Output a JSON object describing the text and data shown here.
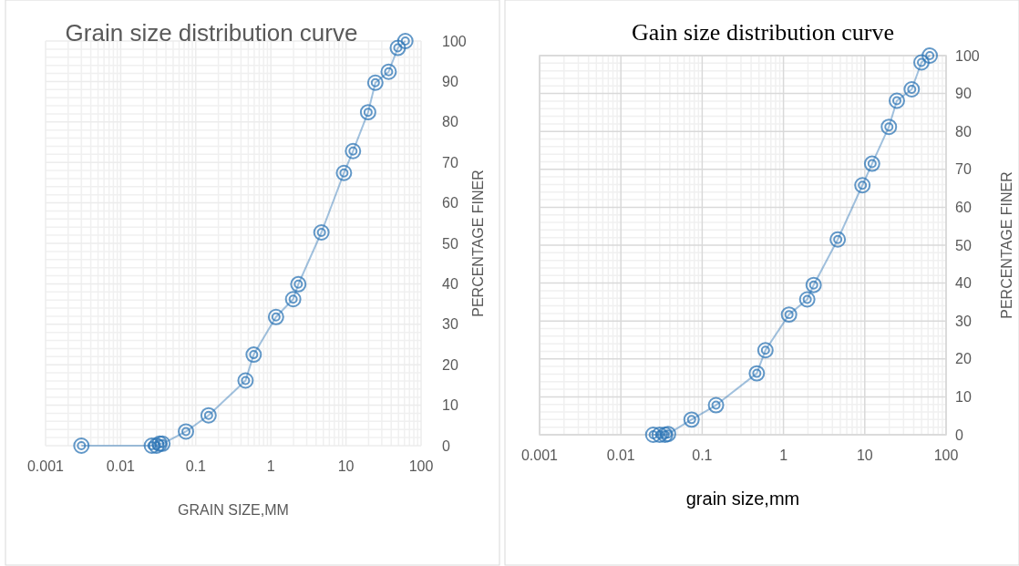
{
  "chart_data": [
    {
      "type": "line",
      "title": "Grain size distribution curve",
      "xlabel": "GRAIN SIZE,MM",
      "ylabel": "PERCENTAGE FINER",
      "log": "x",
      "grid": true,
      "marker": "circle",
      "xlim": [
        0.001,
        100
      ],
      "xticks": [
        0.001,
        0.01,
        0.1,
        1,
        10,
        100
      ],
      "ylim": [
        0,
        100
      ],
      "yticks": [
        0,
        10,
        20,
        30,
        40,
        50,
        60,
        70,
        80,
        90,
        100
      ],
      "series": [
        {
          "color": "#2e75b6",
          "x": [
            0.003,
            0.026,
            0.03,
            0.033,
            0.036,
            0.074,
            0.148,
            0.46,
            0.59,
            1.17,
            1.98,
            2.32,
            4.71,
            9.4,
            12.4,
            19.7,
            24.6,
            37,
            49,
            61.7
          ],
          "values": [
            0,
            0,
            0,
            0.5,
            0.5,
            3.5,
            7.5,
            16.1,
            22.5,
            31.8,
            36.2,
            39.9,
            52.7,
            67.4,
            72.8,
            82.4,
            89.7,
            92.4,
            98.3,
            100
          ]
        }
      ]
    },
    {
      "type": "line",
      "title": "Gain size distribution curve",
      "xlabel": "grain size,mm",
      "ylabel": "PERCENTAGE FINER",
      "log": "x",
      "grid": true,
      "marker": "circle",
      "xlim": [
        0.001,
        100
      ],
      "xticks": [
        0.001,
        0.01,
        0.1,
        1,
        10,
        100
      ],
      "ylim": [
        0,
        100
      ],
      "yticks": [
        0,
        10,
        20,
        30,
        40,
        50,
        60,
        70,
        80,
        90,
        100
      ],
      "series": [
        {
          "color": "#2e75b6",
          "x": [
            0.025,
            0.03,
            0.035,
            0.038,
            0.074,
            0.148,
            0.47,
            0.6,
            1.17,
            1.96,
            2.35,
            4.65,
            9.35,
            12.3,
            19.8,
            24.8,
            37.8,
            49.8,
            63
          ],
          "values": [
            0,
            0,
            0,
            0.2,
            4,
            7.8,
            16.2,
            22.3,
            31.7,
            35.7,
            39.5,
            51.5,
            65.8,
            71.5,
            81.2,
            88.1,
            91.1,
            98.2,
            100
          ]
        }
      ]
    }
  ]
}
